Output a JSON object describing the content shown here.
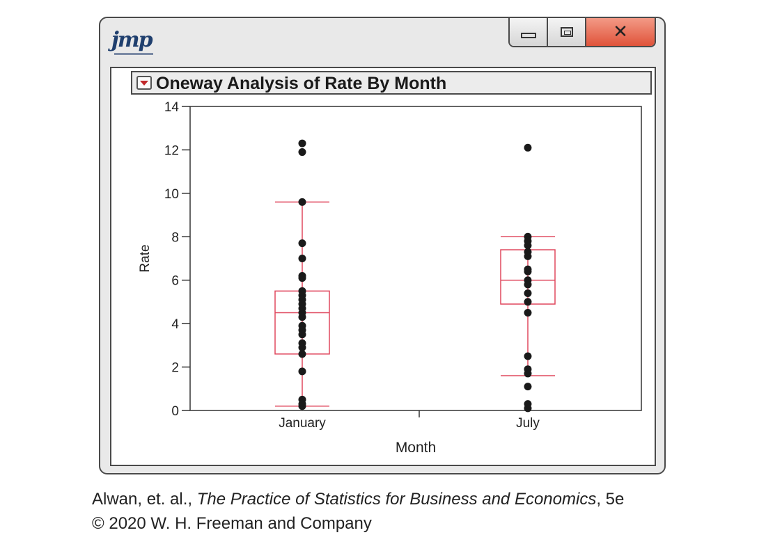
{
  "window": {
    "logo_text": "jmp",
    "title": "Oneway Analysis of Rate By Month"
  },
  "caption": {
    "authors": "Alwan, et. al.,",
    "book": "The Practice of Statistics for Business and Economics",
    "edition": ", 5e",
    "copyright": "© 2020 W. H. Freeman and Company"
  },
  "chart_data": {
    "type": "box",
    "xlabel": "Month",
    "ylabel": "Rate",
    "ylim": [
      0,
      14
    ],
    "yticks": [
      0,
      2,
      4,
      6,
      8,
      10,
      12,
      14
    ],
    "categories": [
      "January",
      "July"
    ],
    "box_color": "#e0485e",
    "point_color": "#1a1a1a",
    "boxes": [
      {
        "category": "January",
        "whisker_low": 0.2,
        "q1": 2.6,
        "median": 4.5,
        "q3": 5.5,
        "whisker_high": 9.6
      },
      {
        "category": "July",
        "whisker_low": 1.6,
        "q1": 4.9,
        "median": 6.0,
        "q3": 7.4,
        "whisker_high": 8.0
      }
    ],
    "points": [
      {
        "category": "January",
        "values": [
          12.3,
          11.9,
          9.6,
          7.7,
          7.0,
          6.2,
          6.1,
          5.5,
          5.3,
          5.1,
          4.9,
          4.7,
          4.5,
          4.3,
          3.9,
          3.7,
          3.5,
          3.1,
          2.9,
          2.6,
          1.8,
          0.5,
          0.3,
          0.2
        ]
      },
      {
        "category": "July",
        "values": [
          12.1,
          8.0,
          7.8,
          7.6,
          7.3,
          7.1,
          6.5,
          6.4,
          6.0,
          5.8,
          5.4,
          5.0,
          4.5,
          2.5,
          1.9,
          1.7,
          1.1,
          0.3,
          0.1
        ]
      }
    ],
    "grid": false,
    "legend": "none"
  }
}
